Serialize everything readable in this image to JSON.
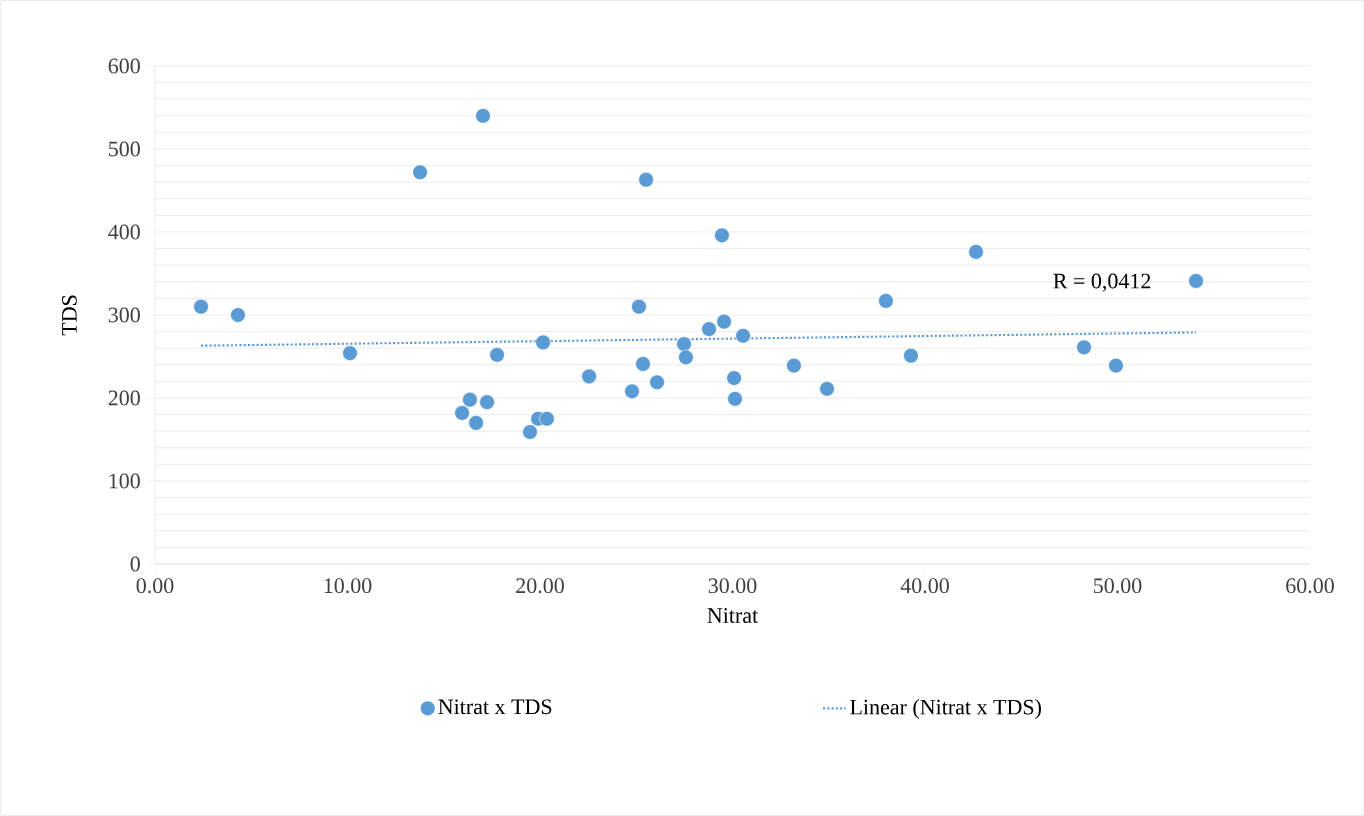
{
  "chart_data": {
    "type": "scatter",
    "xlabel": "Nitrat",
    "ylabel": "TDS",
    "xlim": [
      0,
      60
    ],
    "ylim": [
      0,
      600
    ],
    "xticks": [
      {
        "value": 0,
        "label": "0.00"
      },
      {
        "value": 10,
        "label": "10.00"
      },
      {
        "value": 20,
        "label": "20.00"
      },
      {
        "value": 30,
        "label": "30.00"
      },
      {
        "value": 40,
        "label": "40.00"
      },
      {
        "value": 50,
        "label": "50.00"
      },
      {
        "value": 60,
        "label": "60.00"
      }
    ],
    "yticks": [
      0,
      100,
      200,
      300,
      400,
      500,
      600
    ],
    "grid": "y",
    "legend": "bottom",
    "annotations": [
      "R = 0,0412"
    ],
    "series": [
      {
        "name": "Nitrat x TDS",
        "marker": "circle",
        "color": "#5b9bd5",
        "x": [
          2.39,
          4.31,
          10.13,
          13.77,
          17.04,
          15.95,
          16.36,
          16.68,
          17.25,
          17.77,
          19.48,
          19.9,
          20.36,
          20.16,
          22.55,
          24.78,
          25.14,
          25.35,
          25.51,
          26.08,
          27.48,
          27.58,
          28.78,
          29.45,
          29.56,
          30.08,
          30.13,
          30.55,
          33.19,
          34.91,
          37.97,
          39.27,
          42.65,
          48.26,
          49.92,
          54.08
        ],
        "values": [
          310,
          300,
          254,
          472,
          540,
          182,
          198,
          170,
          195,
          252,
          159,
          175,
          175,
          267,
          226,
          208,
          310,
          241,
          463,
          219,
          265,
          249,
          283,
          396,
          292,
          224,
          199,
          275,
          239,
          211,
          317,
          251,
          376,
          261,
          239,
          341
        ]
      },
      {
        "name": "Linear (Nitrat x TDS)",
        "type": "line",
        "line_style": "dotted",
        "marker": "none",
        "color": "#5b9bd5",
        "x": [
          2.39,
          54.08
        ],
        "values": [
          263,
          279
        ]
      }
    ]
  }
}
